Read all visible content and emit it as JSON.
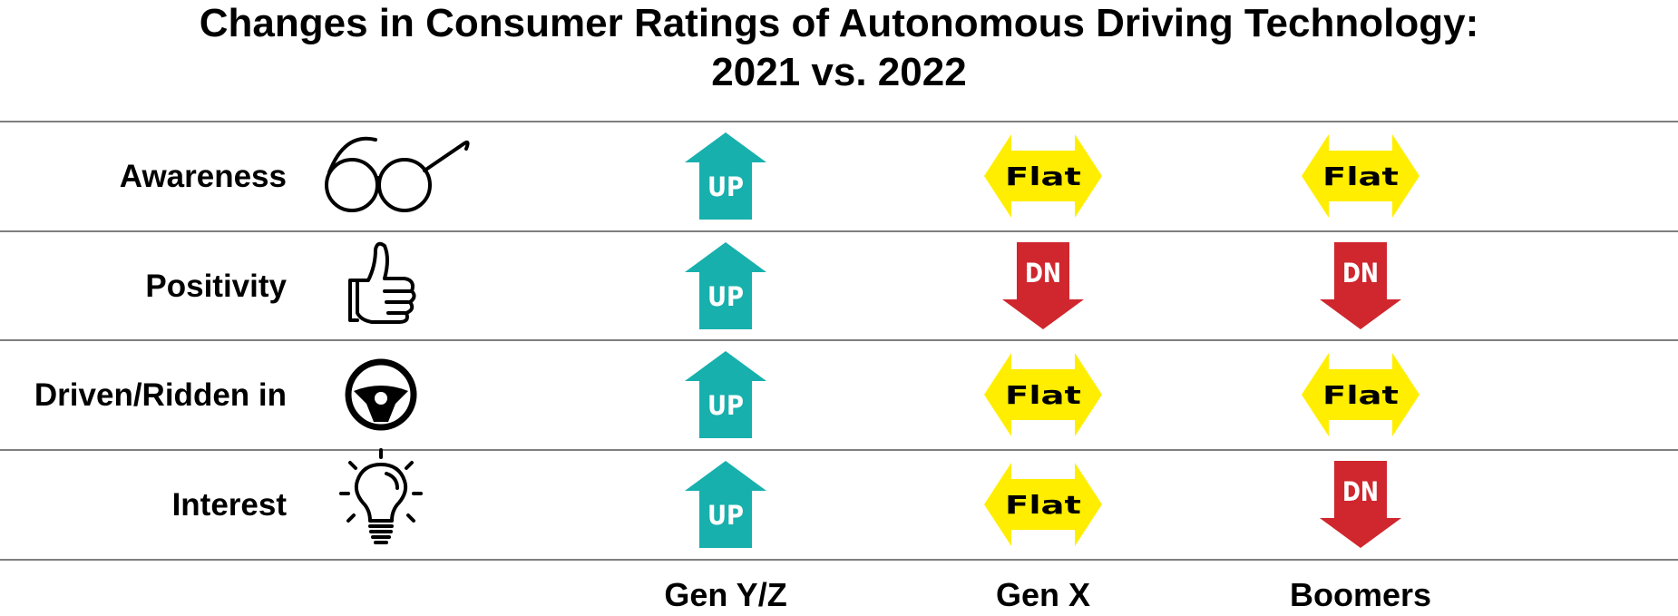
{
  "chart_data": {
    "type": "table",
    "title_lines": [
      "Changes in Consumer Ratings of Autonomous Driving Technology:",
      "2021 vs. 2022"
    ],
    "columns": [
      "Gen Y/Z",
      "Gen X",
      "Boomers"
    ],
    "rows": [
      {
        "label": "Awareness",
        "icon": "glasses-icon",
        "values": [
          "UP",
          "Flat",
          "Flat"
        ]
      },
      {
        "label": "Positivity",
        "icon": "thumbs-up-icon",
        "values": [
          "UP",
          "DN",
          "DN"
        ]
      },
      {
        "label": "Driven/Ridden in",
        "icon": "steering-wheel-icon",
        "values": [
          "UP",
          "Flat",
          "Flat"
        ]
      },
      {
        "label": "Interest",
        "icon": "lightbulb-icon",
        "values": [
          "UP",
          "Flat",
          "DN"
        ]
      }
    ],
    "legend": "none",
    "grid": true
  },
  "colors": {
    "UP": "#17b0ad",
    "DN": "#d0262e",
    "Flat": "#ffee00",
    "UP_text": "#ffffff",
    "DN_text": "#ffffff",
    "Flat_text": "#000000",
    "line": "#555555"
  }
}
